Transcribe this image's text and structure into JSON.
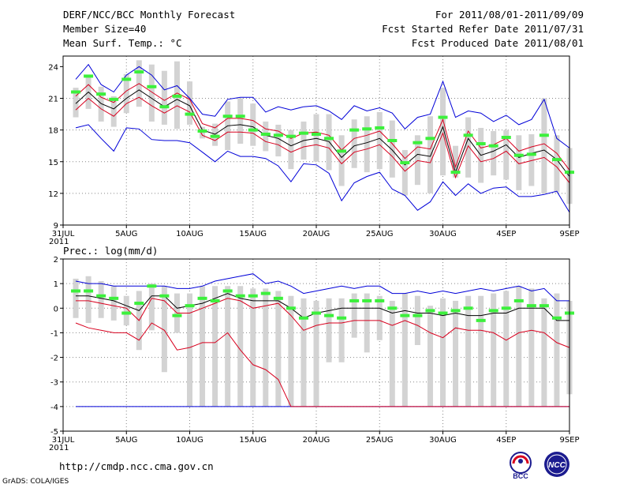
{
  "header": {
    "left": [
      "DERF/NCC/BCC Monthly Forecast",
      "Member Size=40",
      "Mean Surf. Temp.: °C"
    ],
    "right": [
      "For 2011/08/01-2011/09/09",
      "Fcst Started Refer Date 2011/07/31",
      "Fcst Produced Date 2011/08/01"
    ]
  },
  "footer": {
    "url": "http://cmdp.ncc.cma.gov.cn",
    "credit": "GrADS: COLA/IGES"
  },
  "logos": {
    "bcc": "BCC",
    "ncc": "NCC"
  },
  "colors": {
    "box": "#d3d3d3",
    "green": "#3cf03c",
    "blue": "#0000d8",
    "red": "#d8001e",
    "black": "#000000"
  },
  "chart_data": [
    {
      "type": "line",
      "title": "Mean Surf. Temp.: °C",
      "ylim": [
        9,
        25
      ],
      "yticks": [
        9,
        12,
        15,
        18,
        21,
        24
      ],
      "x_range": [
        0,
        40
      ],
      "xticks": [
        {
          "day": 0,
          "label": "31JUL"
        },
        {
          "day": 5,
          "label": "5AUG"
        },
        {
          "day": 10,
          "label": "10AUG"
        },
        {
          "day": 15,
          "label": "15AUG"
        },
        {
          "day": 20,
          "label": "20AUG"
        },
        {
          "day": 25,
          "label": "25AUG"
        },
        {
          "day": 30,
          "label": "30AUG"
        },
        {
          "day": 35,
          "label": "4SEP"
        },
        {
          "day": 40,
          "label": "9SEP"
        }
      ],
      "year_label": "2011",
      "days": [
        1,
        2,
        3,
        4,
        5,
        6,
        7,
        8,
        9,
        10,
        11,
        12,
        13,
        14,
        15,
        16,
        17,
        18,
        19,
        20,
        21,
        22,
        23,
        24,
        25,
        26,
        27,
        28,
        29,
        30,
        31,
        32,
        33,
        34,
        35,
        36,
        37,
        38,
        39,
        40
      ],
      "box_low": [
        19.2,
        20.0,
        18.8,
        18.3,
        19.6,
        20.2,
        18.8,
        18.5,
        18.1,
        18.5,
        17.2,
        16.5,
        16.1,
        16.7,
        16.5,
        16.0,
        15.5,
        14.3,
        15.2,
        15.0,
        14.2,
        12.7,
        14.4,
        14.0,
        14.3,
        13.5,
        11.8,
        12.8,
        12.0,
        13.7,
        13.5,
        13.5,
        13.0,
        13.7,
        13.3,
        12.3,
        12.7,
        12.0,
        12.1,
        11.0
      ],
      "box_high": [
        22.0,
        23.2,
        22.1,
        21.2,
        23.3,
        24.6,
        24.2,
        23.6,
        24.5,
        22.6,
        18.3,
        18.6,
        20.7,
        21.0,
        20.5,
        18.8,
        18.5,
        18.0,
        18.8,
        19.5,
        19.5,
        17.5,
        19.0,
        19.3,
        19.7,
        18.9,
        16.1,
        17.5,
        19.3,
        22.0,
        16.5,
        19.2,
        18.2,
        17.9,
        18.0,
        17.5,
        17.6,
        21.0,
        17.5,
        16.3
      ],
      "ensemble_values": [
        21.6,
        23.1,
        21.4,
        20.9,
        22.8,
        23.5,
        22.1,
        20.2,
        21.2,
        19.5,
        17.9,
        17.4,
        19.3,
        19.3,
        18.0,
        17.6,
        17.5,
        17.4,
        17.7,
        17.6,
        17.2,
        16.0,
        18.0,
        18.1,
        18.2,
        17.0,
        14.9,
        16.8,
        17.2,
        19.2,
        14.0,
        17.5,
        16.7,
        16.5,
        17.3,
        15.6,
        15.7,
        17.5,
        15.2,
        14.0
      ],
      "series": [
        {
          "name": "max",
          "color": "#0000d8",
          "values": [
            18.2,
            18.5,
            17.2,
            16.0,
            18.2,
            18.1,
            17.1,
            17.0,
            17.0,
            16.8,
            15.9,
            15.0,
            16.0,
            15.5,
            15.5,
            15.3,
            14.6,
            13.1,
            14.8,
            14.7,
            13.9,
            11.3,
            13.0,
            13.6,
            14.0,
            12.4,
            11.8,
            10.4,
            11.2,
            13.1,
            11.8,
            12.9,
            12.0,
            12.5,
            12.6,
            11.7,
            11.7,
            11.9,
            12.2,
            10.2
          ]
        },
        {
          "name": "max",
          "color": "#0000d8",
          "values": [
            22.8,
            24.2,
            22.3,
            21.6,
            23.2,
            24.0,
            23.2,
            21.8,
            22.2,
            21.0,
            19.5,
            19.3,
            20.9,
            21.1,
            21.1,
            19.7,
            20.2,
            19.9,
            20.2,
            20.3,
            19.8,
            19.0,
            20.3,
            19.8,
            20.1,
            19.6,
            18.1,
            19.2,
            19.5,
            22.6,
            19.2,
            19.8,
            19.6,
            18.8,
            19.4,
            18.5,
            19.0,
            20.9,
            17.2,
            16.3
          ]
        },
        {
          "name": "mean",
          "color": "#d8001e",
          "values": [
            19.9,
            21.0,
            20.0,
            19.3,
            20.5,
            21.1,
            20.3,
            19.6,
            20.3,
            19.7,
            17.5,
            17.0,
            17.8,
            17.8,
            17.7,
            16.9,
            16.6,
            15.9,
            16.4,
            16.6,
            16.3,
            14.8,
            15.9,
            16.2,
            16.6,
            15.5,
            14.1,
            15.1,
            14.9,
            17.7,
            13.5,
            16.5,
            15.0,
            15.3,
            16.0,
            14.8,
            15.1,
            15.4,
            14.5,
            13.0
          ]
        },
        {
          "name": "mean",
          "color": "#d8001e",
          "values": [
            21.2,
            22.3,
            21.1,
            20.6,
            21.7,
            22.4,
            21.6,
            20.8,
            21.5,
            20.9,
            18.6,
            18.2,
            19.1,
            19.1,
            18.9,
            18.1,
            17.9,
            17.2,
            17.7,
            17.8,
            17.5,
            16.1,
            17.2,
            17.5,
            17.9,
            16.7,
            15.3,
            16.4,
            16.2,
            19.0,
            14.5,
            17.9,
            16.3,
            16.6,
            17.2,
            16.0,
            16.4,
            16.7,
            15.8,
            14.2
          ]
        },
        {
          "name": "ensemble",
          "color": "#000000",
          "values": [
            20.5,
            21.6,
            20.5,
            20.0,
            21.0,
            21.8,
            21.0,
            20.2,
            20.9,
            20.3,
            18.0,
            17.6,
            18.4,
            18.5,
            18.3,
            17.5,
            17.2,
            16.5,
            17.0,
            17.2,
            16.9,
            15.4,
            16.5,
            16.8,
            17.2,
            16.1,
            14.7,
            15.7,
            15.5,
            18.3,
            14.0,
            17.2,
            15.6,
            16.0,
            16.6,
            15.4,
            15.8,
            16.1,
            15.2,
            13.6
          ]
        }
      ]
    },
    {
      "type": "line",
      "title": "Prec.: log(mm/d)",
      "ylim": [
        -5,
        2
      ],
      "yticks": [
        -5,
        -4,
        -3,
        -2,
        -1,
        0,
        1,
        2
      ],
      "x_range": [
        0,
        40
      ],
      "xticks": [
        {
          "day": 0,
          "label": "31JUL"
        },
        {
          "day": 5,
          "label": "5AUG"
        },
        {
          "day": 10,
          "label": "10AUG"
        },
        {
          "day": 15,
          "label": "15AUG"
        },
        {
          "day": 20,
          "label": "20AUG"
        },
        {
          "day": 25,
          "label": "25AUG"
        },
        {
          "day": 30,
          "label": "30AUG"
        },
        {
          "day": 35,
          "label": "4SEP"
        },
        {
          "day": 40,
          "label": "9SEP"
        }
      ],
      "year_label": "2011",
      "days": [
        1,
        2,
        3,
        4,
        5,
        6,
        7,
        8,
        9,
        10,
        11,
        12,
        13,
        14,
        15,
        16,
        17,
        18,
        19,
        20,
        21,
        22,
        23,
        24,
        25,
        26,
        27,
        28,
        29,
        30,
        31,
        32,
        33,
        34,
        35,
        36,
        37,
        38,
        39,
        40
      ],
      "box_low": [
        -0.4,
        -0.6,
        -0.4,
        -0.5,
        -0.7,
        -1.7,
        -0.9,
        -2.6,
        -1.0,
        -4.0,
        -4.0,
        -4.0,
        -4.0,
        -4.0,
        -4.0,
        -4.0,
        -4.0,
        -4.0,
        -4.0,
        -4.0,
        -2.2,
        -2.2,
        -1.2,
        -1.8,
        -1.3,
        -4.0,
        -4.0,
        -1.5,
        -4.0,
        -4.0,
        -4.0,
        -4.0,
        -4.0,
        -4.0,
        -4.0,
        -4.0,
        -4.0,
        -4.0,
        -4.0,
        -3.5
      ],
      "box_high": [
        1.2,
        1.3,
        1.1,
        0.9,
        0.5,
        0.7,
        1.0,
        0.9,
        0.6,
        0.6,
        0.9,
        0.9,
        0.9,
        0.9,
        0.8,
        0.8,
        0.7,
        0.5,
        0.4,
        0.3,
        0.4,
        0.4,
        0.6,
        0.6,
        0.5,
        0.3,
        0.6,
        0.5,
        0.1,
        0.4,
        0.3,
        0.5,
        0.5,
        0.6,
        0.7,
        0.9,
        0.8,
        0.4,
        0.6,
        0.3
      ],
      "ensemble_values": [
        0.7,
        0.7,
        0.5,
        0.4,
        -0.2,
        0.2,
        0.9,
        0.5,
        -0.3,
        0.1,
        0.4,
        0.3,
        0.7,
        0.5,
        0.5,
        0.6,
        0.4,
        0.0,
        -0.4,
        -0.2,
        -0.3,
        -0.4,
        0.3,
        0.3,
        0.3,
        0.0,
        -0.3,
        -0.3,
        -0.1,
        -0.2,
        -0.1,
        0.0,
        -0.5,
        -0.1,
        0.0,
        0.3,
        0.1,
        0.1,
        -0.4,
        -0.2
      ],
      "series": [
        {
          "name": "min",
          "color": "#0000d8",
          "values": [
            -4.0,
            -4.0,
            -4.0,
            -4.0,
            -4.0,
            -4.0,
            -4.0,
            -4.0,
            -4.0,
            -4.0,
            -4.0,
            -4.0,
            -4.0,
            -4.0,
            -4.0,
            -4.0,
            -4.0,
            -4.0,
            -4.0,
            -4.0,
            -4.0,
            -4.0,
            -4.0,
            -4.0,
            -4.0,
            -4.0,
            -4.0,
            -4.0,
            -4.0,
            -4.0,
            -4.0,
            -4.0,
            -4.0,
            -4.0,
            -4.0,
            -4.0,
            -4.0,
            -4.0,
            -4.0,
            -4.0
          ]
        },
        {
          "name": "max",
          "color": "#0000d8",
          "values": [
            1.1,
            1.0,
            1.0,
            0.9,
            0.9,
            0.9,
            0.9,
            0.9,
            0.8,
            0.8,
            0.9,
            1.1,
            1.2,
            1.3,
            1.4,
            1.0,
            1.1,
            0.9,
            0.6,
            0.7,
            0.8,
            0.9,
            0.8,
            0.9,
            0.9,
            0.6,
            0.6,
            0.7,
            0.6,
            0.7,
            0.6,
            0.7,
            0.8,
            0.7,
            0.8,
            0.9,
            0.7,
            0.8,
            0.3,
            0.3
          ]
        },
        {
          "name": "min",
          "color": "#d8001e",
          "values": [
            -0.6,
            -0.8,
            -0.9,
            -1.0,
            -1.0,
            -1.3,
            -0.6,
            -0.9,
            -1.7,
            -1.6,
            -1.4,
            -1.4,
            -1.0,
            -1.7,
            -2.3,
            -2.5,
            -2.9,
            -4.0,
            -4.0,
            -4.0,
            -4.0,
            -4.0,
            -4.0,
            -4.0,
            -4.0,
            -4.0,
            -4.0,
            -4.0,
            -4.0,
            -4.0,
            -4.0,
            -4.0,
            -4.0,
            -4.0,
            -4.0,
            -4.0,
            -4.0,
            -4.0,
            -4.0,
            -4.0
          ]
        },
        {
          "name": "mean",
          "color": "#d8001e",
          "values": [
            0.3,
            0.3,
            0.2,
            0.1,
            0.0,
            -0.5,
            0.4,
            0.3,
            -0.2,
            -0.2,
            0.0,
            0.2,
            0.4,
            0.3,
            0.0,
            0.1,
            0.2,
            -0.3,
            -0.9,
            -0.7,
            -0.6,
            -0.6,
            -0.5,
            -0.5,
            -0.5,
            -0.7,
            -0.5,
            -0.7,
            -1.0,
            -1.2,
            -0.8,
            -0.9,
            -0.9,
            -1.0,
            -1.3,
            -1.0,
            -0.9,
            -1.0,
            -1.4,
            -1.6
          ]
        },
        {
          "name": "ensemble",
          "color": "#000000",
          "values": [
            0.5,
            0.5,
            0.4,
            0.3,
            0.1,
            -0.1,
            0.5,
            0.5,
            0.0,
            0.1,
            0.2,
            0.4,
            0.6,
            0.4,
            0.3,
            0.3,
            0.3,
            0.0,
            -0.4,
            -0.2,
            -0.1,
            0.0,
            0.0,
            0.0,
            0.0,
            -0.2,
            -0.1,
            -0.2,
            -0.2,
            -0.3,
            -0.2,
            -0.3,
            -0.3,
            -0.2,
            -0.2,
            0.0,
            0.0,
            0.0,
            -0.5,
            -0.5
          ]
        }
      ]
    }
  ]
}
